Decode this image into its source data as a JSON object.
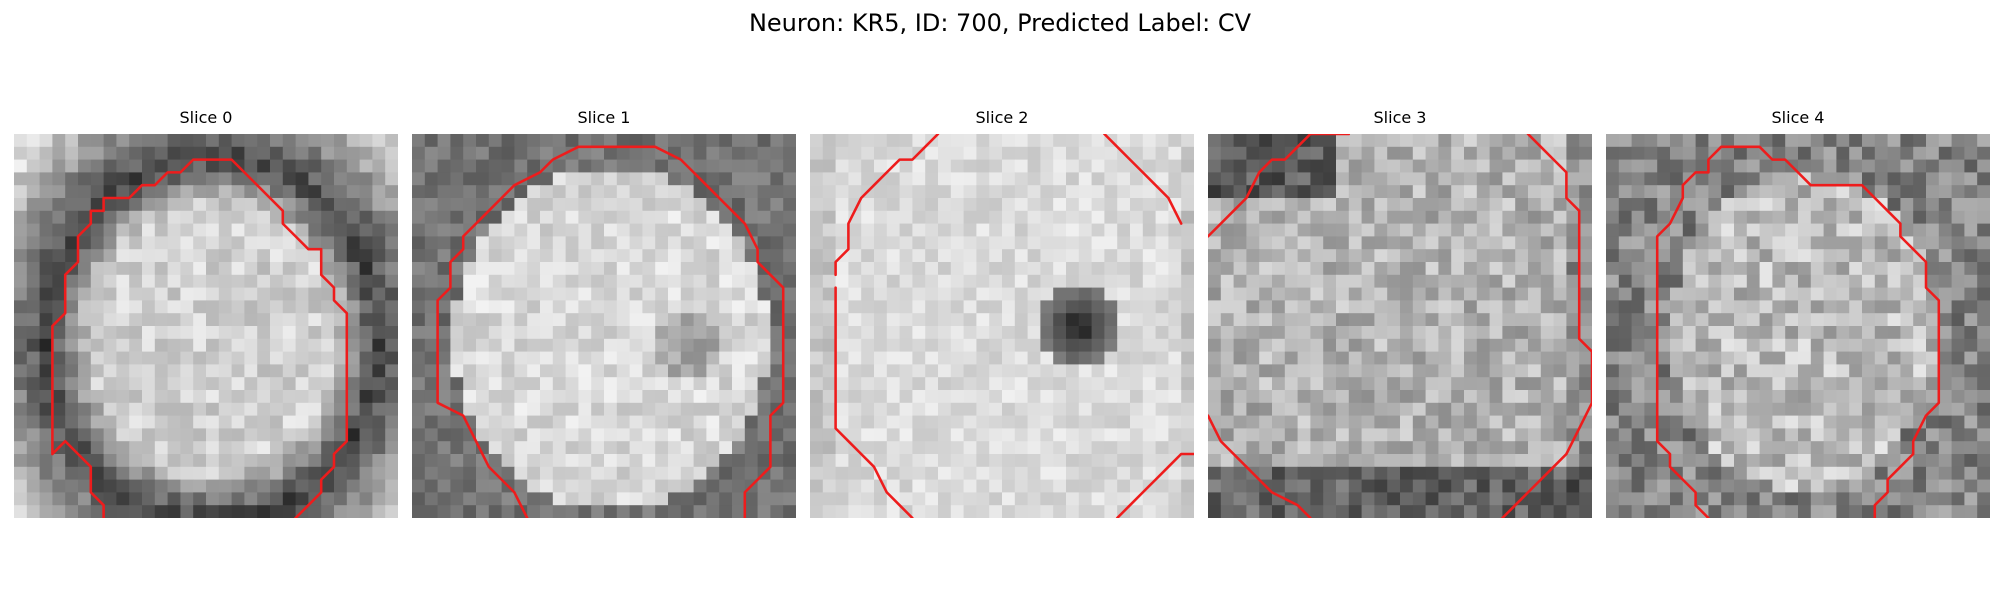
{
  "figure": {
    "title": "Neuron: KR5, ID: 700, Predicted Label: CV"
  },
  "colors": {
    "contour": "#ee1c1c",
    "background": "#ffffff"
  },
  "grid_size": 30,
  "panels": [
    {
      "title": "Slice 0",
      "pattern": "ring-cell",
      "contours": [
        [
          [
            3,
            25
          ],
          [
            3,
            15
          ],
          [
            4,
            14
          ],
          [
            4,
            11
          ],
          [
            5,
            10
          ],
          [
            5,
            8
          ],
          [
            6,
            7
          ],
          [
            6,
            6
          ],
          [
            7,
            6
          ],
          [
            7,
            5
          ],
          [
            9,
            5
          ],
          [
            10,
            4
          ],
          [
            11,
            4
          ],
          [
            12,
            3
          ],
          [
            13,
            3
          ],
          [
            14,
            2
          ],
          [
            17,
            2
          ],
          [
            18,
            3
          ],
          [
            19,
            4
          ],
          [
            20,
            5
          ],
          [
            21,
            6
          ],
          [
            21,
            7
          ],
          [
            22,
            8
          ],
          [
            23,
            9
          ],
          [
            24,
            9
          ],
          [
            24,
            11
          ],
          [
            25,
            12
          ],
          [
            25,
            13
          ],
          [
            26,
            14
          ],
          [
            26,
            24
          ],
          [
            25,
            25
          ],
          [
            25,
            26
          ],
          [
            24,
            27
          ],
          [
            24,
            28
          ],
          [
            23,
            29
          ],
          [
            22,
            30
          ],
          [
            21,
            31
          ],
          [
            20,
            31
          ],
          [
            19,
            32
          ],
          [
            18,
            32
          ],
          [
            17,
            33
          ],
          [
            16,
            34
          ],
          [
            13,
            34
          ],
          [
            12,
            33
          ],
          [
            10,
            32
          ],
          [
            9,
            31
          ],
          [
            8,
            31
          ],
          [
            7,
            30
          ],
          [
            7,
            29
          ],
          [
            6,
            28
          ],
          [
            6,
            26
          ],
          [
            5,
            25
          ],
          [
            4,
            24
          ],
          [
            3,
            25
          ]
        ]
      ]
    },
    {
      "title": "Slice 1",
      "pattern": "large-cell",
      "contours": [
        [
          [
            9,
            30
          ],
          [
            8,
            28
          ],
          [
            7,
            27
          ],
          [
            6,
            26
          ],
          [
            5,
            24
          ],
          [
            4,
            22
          ],
          [
            2,
            21
          ],
          [
            2,
            13
          ],
          [
            3,
            12
          ],
          [
            3,
            10
          ],
          [
            4,
            9
          ],
          [
            4,
            8
          ],
          [
            5,
            7
          ],
          [
            6,
            6
          ],
          [
            7,
            5
          ],
          [
            8,
            4
          ],
          [
            10,
            3
          ],
          [
            11,
            2
          ],
          [
            13,
            1
          ],
          [
            14,
            1
          ],
          [
            18,
            1
          ],
          [
            19,
            1
          ],
          [
            21,
            2
          ],
          [
            22,
            3
          ],
          [
            23,
            4
          ],
          [
            24,
            5
          ],
          [
            25,
            6
          ],
          [
            26,
            7
          ],
          [
            27,
            9
          ],
          [
            27,
            10
          ],
          [
            28,
            11
          ],
          [
            29,
            12
          ],
          [
            29,
            21
          ],
          [
            28,
            22
          ],
          [
            28,
            24
          ],
          [
            28,
            26
          ],
          [
            27,
            27
          ],
          [
            26,
            28
          ],
          [
            26,
            30
          ]
        ]
      ]
    },
    {
      "title": "Slice 2",
      "pattern": "dark-nucleus",
      "contours": [
        [
          [
            2,
            11
          ],
          [
            2,
            10
          ],
          [
            3,
            9
          ],
          [
            3,
            7
          ],
          [
            4,
            5
          ],
          [
            5,
            4
          ],
          [
            6,
            3
          ],
          [
            7,
            2
          ],
          [
            8,
            2
          ],
          [
            9,
            1
          ],
          [
            10,
            0
          ]
        ],
        [
          [
            23,
            0
          ],
          [
            24,
            1
          ],
          [
            25,
            2
          ],
          [
            26,
            3
          ],
          [
            27,
            4
          ],
          [
            28,
            5
          ],
          [
            29,
            7
          ]
        ],
        [
          [
            8,
            30
          ],
          [
            7,
            29
          ],
          [
            6,
            28
          ],
          [
            5,
            26
          ],
          [
            4,
            25
          ],
          [
            3,
            24
          ],
          [
            2,
            23
          ],
          [
            2,
            12
          ]
        ],
        [
          [
            24,
            30
          ],
          [
            25,
            29
          ],
          [
            26,
            28
          ],
          [
            27,
            27
          ],
          [
            28,
            26
          ],
          [
            29,
            25
          ],
          [
            30,
            25
          ]
        ]
      ]
    },
    {
      "title": "Slice 3",
      "pattern": "dark-top-band",
      "contours": [
        [
          [
            0,
            8
          ],
          [
            1,
            7
          ],
          [
            2,
            6
          ],
          [
            3,
            5
          ],
          [
            4,
            3
          ],
          [
            5,
            2
          ],
          [
            6,
            2
          ],
          [
            7,
            1
          ],
          [
            8,
            0
          ],
          [
            11,
            0
          ]
        ],
        [
          [
            25,
            0
          ],
          [
            26,
            1
          ],
          [
            27,
            2
          ],
          [
            28,
            3
          ],
          [
            28,
            5
          ],
          [
            29,
            6
          ],
          [
            29,
            8
          ],
          [
            29,
            13
          ],
          [
            29,
            16
          ],
          [
            30,
            17
          ],
          [
            30,
            21
          ],
          [
            29,
            23
          ],
          [
            28,
            25
          ],
          [
            27,
            26
          ],
          [
            26,
            27
          ],
          [
            25,
            28
          ],
          [
            24,
            29
          ],
          [
            23,
            30
          ]
        ],
        [
          [
            8,
            30
          ],
          [
            7,
            29
          ],
          [
            5,
            28
          ],
          [
            4,
            27
          ],
          [
            3,
            26
          ],
          [
            2,
            25
          ],
          [
            1,
            24
          ],
          [
            0,
            22
          ]
        ]
      ]
    },
    {
      "title": "Slice 4",
      "pattern": "oval-cell",
      "contours": [
        [
          [
            8,
            30
          ],
          [
            7,
            29
          ],
          [
            7,
            28
          ],
          [
            6,
            27
          ],
          [
            5,
            26
          ],
          [
            5,
            25
          ],
          [
            4,
            24
          ],
          [
            4,
            10
          ],
          [
            4,
            9
          ],
          [
            4,
            8
          ],
          [
            5,
            7
          ],
          [
            6,
            5
          ],
          [
            6,
            4
          ],
          [
            7,
            3
          ],
          [
            8,
            3
          ],
          [
            8,
            2
          ],
          [
            9,
            1
          ],
          [
            11,
            1
          ],
          [
            12,
            1
          ],
          [
            13,
            2
          ],
          [
            14,
            2
          ],
          [
            15,
            3
          ],
          [
            16,
            4
          ],
          [
            17,
            4
          ],
          [
            18,
            4
          ],
          [
            20,
            4
          ],
          [
            21,
            5
          ],
          [
            22,
            6
          ],
          [
            23,
            7
          ],
          [
            23,
            8
          ],
          [
            24,
            9
          ],
          [
            25,
            10
          ],
          [
            25,
            12
          ],
          [
            26,
            13
          ],
          [
            26,
            21
          ],
          [
            25,
            22
          ],
          [
            24,
            24
          ],
          [
            24,
            25
          ],
          [
            23,
            26
          ],
          [
            22,
            27
          ],
          [
            22,
            28
          ],
          [
            21,
            29
          ],
          [
            21,
            30
          ]
        ]
      ]
    }
  ]
}
